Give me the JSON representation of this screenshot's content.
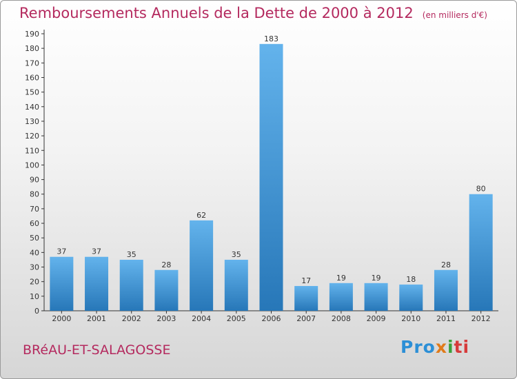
{
  "header": {
    "title": "Remboursements Annuels de la Dette de 2000 à 2012",
    "unit": "(en milliers d'€)"
  },
  "footer": {
    "commune": "BRéAU-ET-SALAGOSSE",
    "logo": {
      "p1": "Pro",
      "p2": "x",
      "p3": "i",
      "p4": "ti"
    }
  },
  "colors": {
    "title": "#b4295e",
    "bar_light": "#63b3ec",
    "bar_dark": "#2777b8",
    "axis": "#333333"
  },
  "chart_data": {
    "type": "bar",
    "categories": [
      "2000",
      "2001",
      "2002",
      "2003",
      "2004",
      "2005",
      "2006",
      "2007",
      "2008",
      "2009",
      "2010",
      "2011",
      "2012"
    ],
    "values": [
      37,
      37,
      35,
      28,
      62,
      35,
      183,
      17,
      19,
      19,
      18,
      28,
      80
    ],
    "ylim": [
      0,
      190
    ],
    "yticks": [
      0,
      10,
      20,
      30,
      40,
      50,
      60,
      70,
      80,
      90,
      100,
      110,
      120,
      130,
      140,
      150,
      160,
      170,
      180,
      190
    ],
    "grid": false,
    "data_labels": true
  }
}
